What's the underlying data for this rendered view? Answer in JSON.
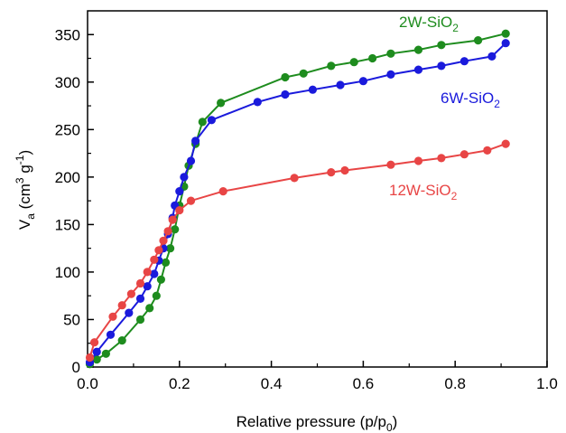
{
  "chart_data": {
    "type": "scatter",
    "xlabel": {
      "main": "Relative pressure (p/p",
      "sub": "0",
      "tail": ")"
    },
    "ylabel": {
      "pre": "V",
      "sub": "a",
      "mid": " (cm",
      "sup1": "3",
      "mid2": " g",
      "sup2": "-1",
      "tail": ")"
    },
    "xlim": [
      0,
      1.0
    ],
    "ylim": [
      0,
      375
    ],
    "x_ticks": [
      "0.0",
      "0.2",
      "0.4",
      "0.6",
      "0.8",
      "1.0"
    ],
    "y_ticks": [
      "0",
      "50",
      "100",
      "150",
      "200",
      "250",
      "300",
      "350"
    ],
    "grid": false,
    "series": [
      {
        "name": "2W-SiO",
        "name_sub": "2",
        "color": "#1e8c1e",
        "x": [
          0.005,
          0.02,
          0.04,
          0.075,
          0.115,
          0.135,
          0.15,
          0.16,
          0.17,
          0.18,
          0.19,
          0.2,
          0.21,
          0.22,
          0.235,
          0.25,
          0.29,
          0.43,
          0.47,
          0.53,
          0.58,
          0.62,
          0.66,
          0.72,
          0.77,
          0.85,
          0.91
        ],
        "y": [
          3,
          8,
          14,
          28,
          50,
          62,
          75,
          92,
          110,
          125,
          145,
          170,
          190,
          212,
          235,
          258,
          278,
          305,
          309,
          317,
          321,
          325,
          330,
          334,
          339,
          344,
          351
        ]
      },
      {
        "name": "6W-SiO",
        "name_sub": "2",
        "color": "#1a1adc",
        "x": [
          0.005,
          0.02,
          0.05,
          0.09,
          0.115,
          0.13,
          0.145,
          0.155,
          0.165,
          0.175,
          0.185,
          0.19,
          0.2,
          0.21,
          0.225,
          0.235,
          0.27,
          0.37,
          0.43,
          0.49,
          0.55,
          0.6,
          0.66,
          0.72,
          0.77,
          0.82,
          0.88,
          0.91
        ],
        "y": [
          5,
          16,
          34,
          57,
          72,
          85,
          98,
          112,
          125,
          140,
          157,
          170,
          185,
          200,
          217,
          238,
          260,
          279,
          287,
          292,
          297,
          301,
          308,
          313,
          317,
          322,
          327,
          341
        ]
      },
      {
        "name": "12W-SiO",
        "name_sub": "2",
        "color": "#e84545",
        "x": [
          0.005,
          0.015,
          0.055,
          0.075,
          0.095,
          0.115,
          0.13,
          0.145,
          0.155,
          0.165,
          0.175,
          0.185,
          0.2,
          0.225,
          0.295,
          0.45,
          0.53,
          0.56,
          0.66,
          0.72,
          0.77,
          0.82,
          0.87,
          0.91
        ],
        "y": [
          10,
          26,
          53,
          65,
          77,
          88,
          100,
          113,
          123,
          133,
          143,
          155,
          165,
          175,
          185,
          199,
          205,
          207,
          213,
          217,
          220,
          224,
          228,
          235
        ]
      }
    ]
  }
}
